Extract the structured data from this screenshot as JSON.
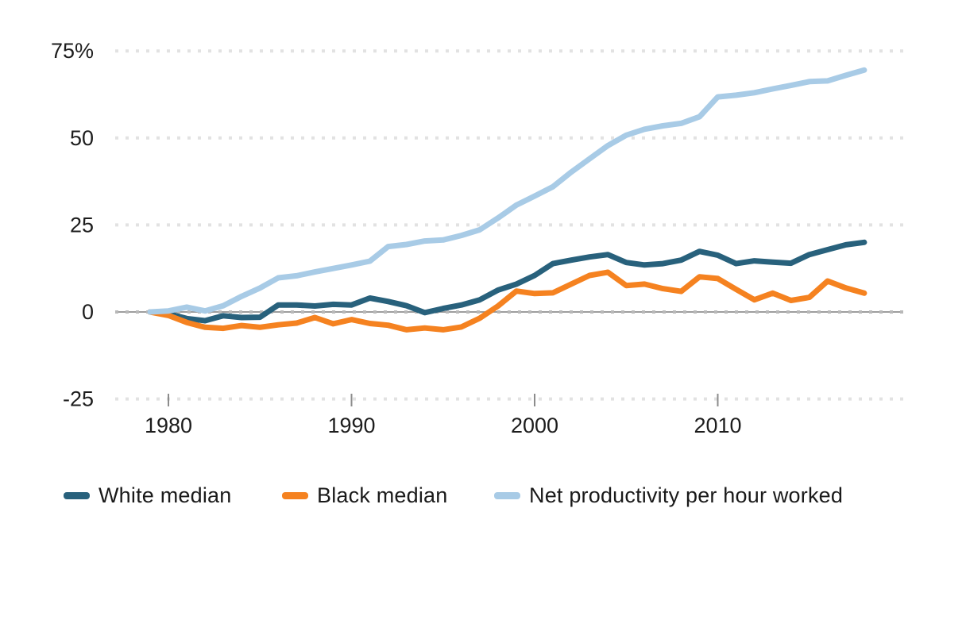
{
  "chart_data": {
    "type": "line",
    "title": "",
    "xlabel": "",
    "ylabel": "",
    "ylim": [
      -25,
      75
    ],
    "xlim": [
      1977,
      2020
    ],
    "grid": "horizontal dotted",
    "legend_position": "bottom",
    "zero_line": true,
    "y_ticks": [
      {
        "value": 75,
        "label": "75%"
      },
      {
        "value": 50,
        "label": "50"
      },
      {
        "value": 25,
        "label": "25"
      },
      {
        "value": 0,
        "label": "0"
      },
      {
        "value": -25,
        "label": "-25"
      }
    ],
    "x_ticks": [
      {
        "value": 1980,
        "label": "1980"
      },
      {
        "value": 1990,
        "label": "1990"
      },
      {
        "value": 2000,
        "label": "2000"
      },
      {
        "value": 2010,
        "label": "2010"
      }
    ],
    "x": [
      1979,
      1980,
      1981,
      1982,
      1983,
      1984,
      1985,
      1986,
      1987,
      1988,
      1989,
      1990,
      1991,
      1992,
      1993,
      1994,
      1995,
      1996,
      1997,
      1998,
      1999,
      2000,
      2001,
      2002,
      2003,
      2004,
      2005,
      2006,
      2007,
      2008,
      2009,
      2010,
      2011,
      2012,
      2013,
      2014,
      2015,
      2016,
      2017,
      2018
    ],
    "series": [
      {
        "name": "White median",
        "color": "#28617c",
        "values": [
          0,
          -0.5,
          -1.9,
          -2.5,
          -1.1,
          -1.6,
          -1.5,
          2.0,
          2.0,
          1.7,
          2.2,
          2.0,
          4.0,
          3.0,
          1.8,
          -0.2,
          1.0,
          2.0,
          3.5,
          6.3,
          8.0,
          10.5,
          13.9,
          14.9,
          15.8,
          16.5,
          14.2,
          13.5,
          13.9,
          14.9,
          17.4,
          16.3,
          13.9,
          14.7,
          14.3,
          14.0,
          16.5,
          17.9,
          19.3,
          20.0
        ]
      },
      {
        "name": "Black median",
        "color": "#f58220",
        "values": [
          0,
          -1.0,
          -3.0,
          -4.4,
          -4.7,
          -3.9,
          -4.4,
          -3.7,
          -3.2,
          -1.6,
          -3.4,
          -2.2,
          -3.3,
          -3.8,
          -5.1,
          -4.6,
          -5.1,
          -4.3,
          -1.8,
          1.7,
          6.0,
          5.3,
          5.5,
          8.0,
          10.5,
          11.4,
          7.6,
          8.0,
          6.7,
          5.9,
          10.1,
          9.6,
          6.5,
          3.5,
          5.4,
          3.3,
          4.2,
          8.9,
          6.9,
          5.4
        ]
      },
      {
        "name": "Net productivity per hour worked",
        "color": "#a8cbe6",
        "values": [
          0,
          0.3,
          1.4,
          0.3,
          1.8,
          4.5,
          6.9,
          9.8,
          10.4,
          11.5,
          12.5,
          13.5,
          14.6,
          18.8,
          19.4,
          20.4,
          20.7,
          22.0,
          23.6,
          27.0,
          30.7,
          33.3,
          36.0,
          40.2,
          44.0,
          47.8,
          50.8,
          52.5,
          53.5,
          54.2,
          56.1,
          61.8,
          62.3,
          63.0,
          64.1,
          65.1,
          66.2,
          66.4,
          68.0,
          69.5
        ]
      }
    ]
  },
  "style_colors": {
    "gridline": "#e2e2e2",
    "zero_line": "#8f8f8f",
    "zero_line_dots": "#b8b8b8",
    "tick_mark": "#8c8c8c",
    "axis_text": "#1d1d1d"
  }
}
